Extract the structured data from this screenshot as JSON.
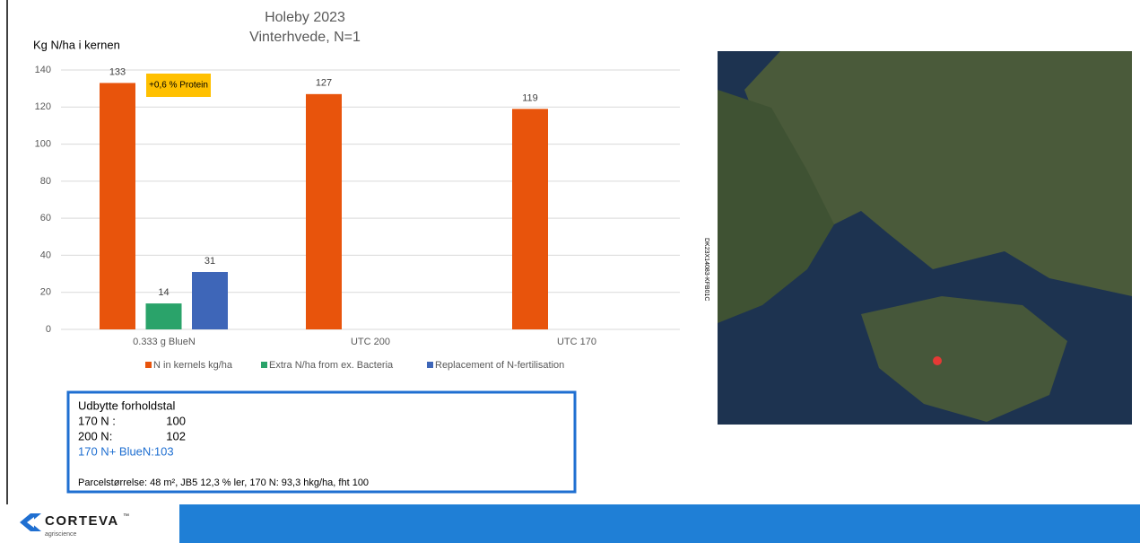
{
  "chart_data": {
    "type": "bar",
    "title": "Holeby 2023",
    "subtitle": "Vinterhvede, N=1",
    "y_label": "Kg N/ha i kernen",
    "categories": [
      "0.333 g BlueN",
      "UTC 200",
      "UTC 170"
    ],
    "series": [
      {
        "name": "N in kernels kg/ha",
        "color": "#e8540c",
        "values": [
          133,
          127,
          119
        ]
      },
      {
        "name": "Extra N/ha from ex. Bacteria",
        "color": "#2aa36a",
        "values": [
          14,
          null,
          null
        ]
      },
      {
        "name": "Replacement of N-fertilisation",
        "color": "#3e66b8",
        "values": [
          31,
          null,
          null
        ]
      }
    ],
    "ylim": [
      0,
      140
    ],
    "yticks": [
      0,
      20,
      40,
      60,
      80,
      100,
      120,
      140
    ],
    "grid": true,
    "legend": "bottom",
    "annotation": "+0,6 % Protein"
  },
  "info_box": {
    "title": "Udbytte forholdstal",
    "rows": [
      [
        "170 N :",
        "100"
      ],
      [
        "200 N:",
        "102"
      ]
    ],
    "highlight": "170 N+ BlueN:103",
    "note": "Parcelstørrelse: 48 m², JB5 12,3 % ler, 170 N: 93,3 hkg/ha, fht 100"
  },
  "map_code": "DK23X14083-KFB01C",
  "logo": {
    "name": "CORTEVA",
    "mark": "™",
    "tagline": "agriscience"
  }
}
